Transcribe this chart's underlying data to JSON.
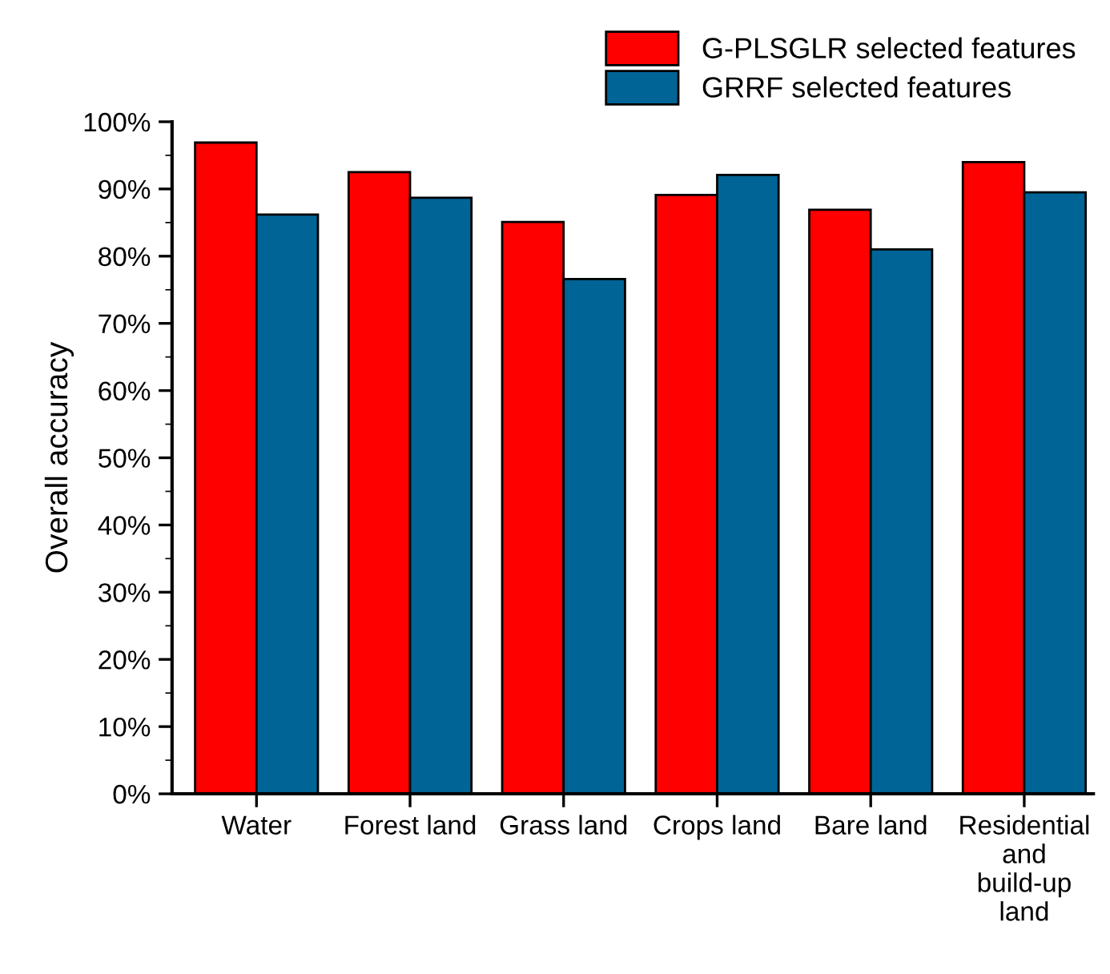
{
  "chart_data": {
    "type": "bar",
    "ylabel": "Overall accuracy",
    "categories": [
      "Water",
      "Forest land",
      "Grass land",
      "Crops land",
      "Bare land",
      "Residential\nand\nbuild-up\nland"
    ],
    "series": [
      {
        "name": "G-PLSGLR selected features",
        "color": "#ff0000",
        "values": [
          96.9,
          92.5,
          85.1,
          89.1,
          86.9,
          94.0
        ]
      },
      {
        "name": "GRRF selected features",
        "color": "#006496",
        "values": [
          86.2,
          88.7,
          76.6,
          92.1,
          81.0,
          89.5
        ]
      }
    ],
    "ylim": [
      0,
      100
    ],
    "yticks": [
      {
        "value": 0,
        "label": "0%"
      },
      {
        "value": 10,
        "label": "10%"
      },
      {
        "value": 20,
        "label": "20%"
      },
      {
        "value": 30,
        "label": "30%"
      },
      {
        "value": 40,
        "label": "40%"
      },
      {
        "value": 50,
        "label": "50%"
      },
      {
        "value": 60,
        "label": "60%"
      },
      {
        "value": 70,
        "label": "70%"
      },
      {
        "value": 80,
        "label": "80%"
      },
      {
        "value": 90,
        "label": "90%"
      },
      {
        "value": 100,
        "label": "100%"
      }
    ],
    "grid": false,
    "legend": "top right"
  }
}
